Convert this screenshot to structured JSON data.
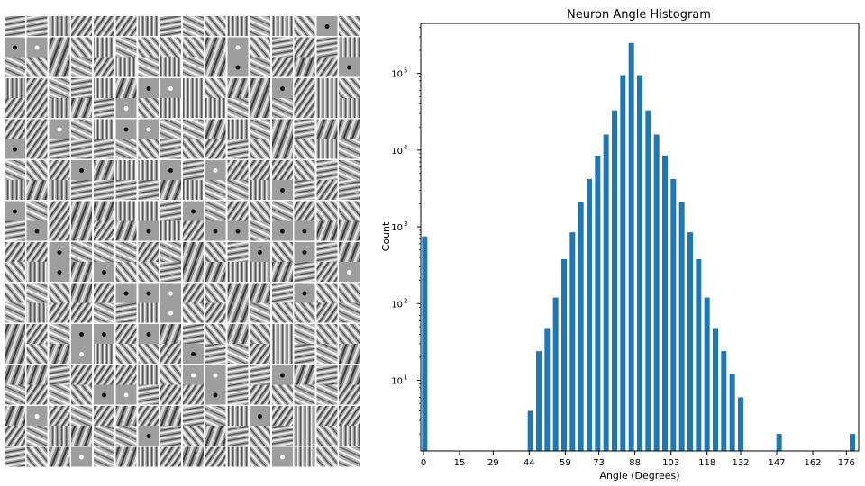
{
  "chart_data": {
    "type": "bar",
    "title": "Neuron Angle Histogram",
    "xlabel": "Angle (Degrees)",
    "ylabel": "Count",
    "y_scale": "log",
    "ylim": [
      1.2,
      450000
    ],
    "xlim": [
      0,
      180
    ],
    "bar_color": "#1f77b4",
    "x_ticks": [
      0,
      15,
      29,
      44,
      59,
      73,
      88,
      103,
      118,
      132,
      147,
      162,
      176
    ],
    "y_ticks": [
      {
        "value": 10,
        "base": "10",
        "exp": "1"
      },
      {
        "value": 100,
        "base": "10",
        "exp": "2"
      },
      {
        "value": 1000,
        "base": "10",
        "exp": "3"
      },
      {
        "value": 10000,
        "base": "10",
        "exp": "4"
      },
      {
        "value": 100000,
        "base": "10",
        "exp": "5"
      }
    ],
    "bins": [
      {
        "x": 0.5,
        "count": 750
      },
      {
        "x": 44.5,
        "count": 4
      },
      {
        "x": 48.0,
        "count": 24
      },
      {
        "x": 51.5,
        "count": 48
      },
      {
        "x": 55.0,
        "count": 120
      },
      {
        "x": 58.5,
        "count": 380
      },
      {
        "x": 62.0,
        "count": 850
      },
      {
        "x": 65.5,
        "count": 2100
      },
      {
        "x": 69.0,
        "count": 4200
      },
      {
        "x": 72.5,
        "count": 8500
      },
      {
        "x": 76.0,
        "count": 16000
      },
      {
        "x": 79.5,
        "count": 33000
      },
      {
        "x": 83.0,
        "count": 95000
      },
      {
        "x": 86.5,
        "count": 250000
      },
      {
        "x": 90.0,
        "count": 95000
      },
      {
        "x": 93.5,
        "count": 33000
      },
      {
        "x": 97.0,
        "count": 16000
      },
      {
        "x": 100.5,
        "count": 8500
      },
      {
        "x": 104.0,
        "count": 4200
      },
      {
        "x": 107.5,
        "count": 2100
      },
      {
        "x": 111.0,
        "count": 850
      },
      {
        "x": 114.5,
        "count": 380
      },
      {
        "x": 118.0,
        "count": 120
      },
      {
        "x": 121.5,
        "count": 48
      },
      {
        "x": 125.0,
        "count": 24
      },
      {
        "x": 128.5,
        "count": 12
      },
      {
        "x": 132.0,
        "count": 6
      },
      {
        "x": 148.0,
        "count": 2
      },
      {
        "x": 178.5,
        "count": 2
      }
    ]
  }
}
